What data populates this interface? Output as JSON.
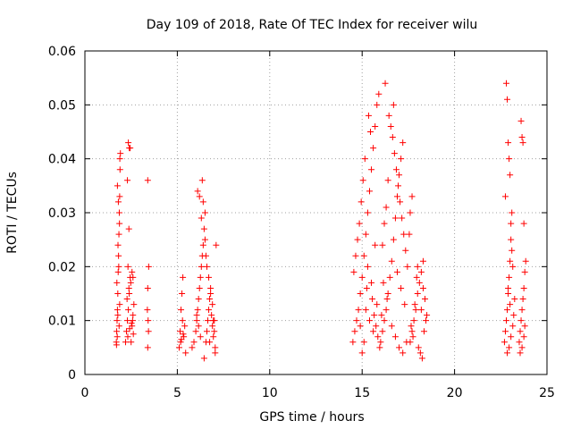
{
  "chart_data": {
    "type": "scatter",
    "title": "Day 109 of 2018, Rate Of TEC Index for receiver wilu",
    "xlabel": "GPS time / hours",
    "ylabel": "ROTI / TECUs",
    "xlim": [
      0,
      25
    ],
    "ylim": [
      0,
      0.06
    ],
    "x_ticks": [
      "0",
      "5",
      "10",
      "15",
      "20",
      "25"
    ],
    "y_ticks": [
      "0",
      "0.01",
      "0.02",
      "0.03",
      "0.04",
      "0.05",
      "0.06"
    ],
    "grid": true,
    "marker": "+",
    "colors": {
      "points": "#ff0000",
      "grid": "#a0a0a0",
      "axis": "#000000"
    },
    "series": [
      {
        "points": [
          [
            1.7,
            0.006
          ],
          [
            1.72,
            0.008
          ],
          [
            1.74,
            0.01
          ],
          [
            1.76,
            0.012
          ],
          [
            1.78,
            0.015
          ],
          [
            1.8,
            0.019
          ],
          [
            1.82,
            0.022
          ],
          [
            1.84,
            0.026
          ],
          [
            1.86,
            0.03
          ],
          [
            1.88,
            0.033
          ],
          [
            1.9,
            0.038
          ],
          [
            1.92,
            0.041
          ],
          [
            1.75,
            0.007
          ],
          [
            1.85,
            0.009
          ],
          [
            1.78,
            0.011
          ],
          [
            1.88,
            0.013
          ],
          [
            1.73,
            0.017
          ],
          [
            1.83,
            0.02
          ],
          [
            1.79,
            0.024
          ],
          [
            1.87,
            0.028
          ],
          [
            1.81,
            0.032
          ],
          [
            1.76,
            0.035
          ],
          [
            1.89,
            0.04
          ],
          [
            1.71,
            0.0055
          ],
          [
            2.2,
            0.006
          ],
          [
            2.25,
            0.008
          ],
          [
            2.3,
            0.01
          ],
          [
            2.35,
            0.012
          ],
          [
            2.4,
            0.015
          ],
          [
            2.45,
            0.018
          ],
          [
            2.5,
            0.006
          ],
          [
            2.55,
            0.009
          ],
          [
            2.6,
            0.011
          ],
          [
            2.65,
            0.013
          ],
          [
            2.28,
            0.014
          ],
          [
            2.38,
            0.016
          ],
          [
            2.48,
            0.017
          ],
          [
            2.58,
            0.01
          ],
          [
            2.32,
            0.007
          ],
          [
            2.42,
            0.0085
          ],
          [
            2.52,
            0.0095
          ],
          [
            2.62,
            0.0075
          ],
          [
            2.35,
            0.043
          ],
          [
            2.4,
            0.042
          ],
          [
            2.45,
            0.042
          ],
          [
            2.3,
            0.036
          ],
          [
            2.38,
            0.027
          ],
          [
            2.33,
            0.02
          ],
          [
            2.55,
            0.019
          ],
          [
            2.6,
            0.018
          ],
          [
            3.4,
            0.036
          ],
          [
            3.45,
            0.02
          ],
          [
            3.4,
            0.016
          ],
          [
            3.38,
            0.012
          ],
          [
            3.42,
            0.01
          ],
          [
            3.44,
            0.008
          ],
          [
            3.4,
            0.005
          ],
          [
            5.1,
            0.005
          ],
          [
            5.15,
            0.008
          ],
          [
            5.2,
            0.012
          ],
          [
            5.25,
            0.015
          ],
          [
            5.3,
            0.018
          ],
          [
            5.18,
            0.006
          ],
          [
            5.28,
            0.01
          ],
          [
            5.35,
            0.007
          ],
          [
            5.4,
            0.009
          ],
          [
            5.45,
            0.004
          ],
          [
            5.22,
            0.0065
          ],
          [
            5.32,
            0.0075
          ],
          [
            5.8,
            0.005
          ],
          [
            5.9,
            0.006
          ],
          [
            6.0,
            0.008
          ],
          [
            6.05,
            0.01
          ],
          [
            6.1,
            0.012
          ],
          [
            6.15,
            0.014
          ],
          [
            6.2,
            0.016
          ],
          [
            6.25,
            0.018
          ],
          [
            6.3,
            0.02
          ],
          [
            6.35,
            0.022
          ],
          [
            6.4,
            0.024
          ],
          [
            6.45,
            0.027
          ],
          [
            6.5,
            0.03
          ],
          [
            6.55,
            0.006
          ],
          [
            6.6,
            0.008
          ],
          [
            6.65,
            0.01
          ],
          [
            6.7,
            0.012
          ],
          [
            6.75,
            0.014
          ],
          [
            6.8,
            0.016
          ],
          [
            6.85,
            0.011
          ],
          [
            6.9,
            0.009
          ],
          [
            6.95,
            0.007
          ],
          [
            7.0,
            0.01
          ],
          [
            7.05,
            0.005
          ],
          [
            6.1,
            0.034
          ],
          [
            6.2,
            0.033
          ],
          [
            6.3,
            0.029
          ],
          [
            6.35,
            0.036
          ],
          [
            6.4,
            0.032
          ],
          [
            6.5,
            0.025
          ],
          [
            6.55,
            0.022
          ],
          [
            6.6,
            0.02
          ],
          [
            6.7,
            0.018
          ],
          [
            6.8,
            0.015
          ],
          [
            6.9,
            0.013
          ],
          [
            7.0,
            0.008
          ],
          [
            7.05,
            0.004
          ],
          [
            6.45,
            0.003
          ],
          [
            6.75,
            0.006
          ],
          [
            7.1,
            0.024
          ],
          [
            6.25,
            0.007
          ],
          [
            6.15,
            0.009
          ],
          [
            6.05,
            0.011
          ],
          [
            6.95,
            0.01
          ],
          [
            14.5,
            0.006
          ],
          [
            14.6,
            0.008
          ],
          [
            14.7,
            0.01
          ],
          [
            14.8,
            0.012
          ],
          [
            14.9,
            0.015
          ],
          [
            15.0,
            0.018
          ],
          [
            15.1,
            0.022
          ],
          [
            15.2,
            0.026
          ],
          [
            15.3,
            0.03
          ],
          [
            15.4,
            0.034
          ],
          [
            15.5,
            0.038
          ],
          [
            15.6,
            0.042
          ],
          [
            15.7,
            0.046
          ],
          [
            15.8,
            0.05
          ],
          [
            15.9,
            0.052
          ],
          [
            15.35,
            0.048
          ],
          [
            15.45,
            0.045
          ],
          [
            15.15,
            0.04
          ],
          [
            15.05,
            0.036
          ],
          [
            14.95,
            0.032
          ],
          [
            14.85,
            0.028
          ],
          [
            14.75,
            0.025
          ],
          [
            14.65,
            0.022
          ],
          [
            14.55,
            0.019
          ],
          [
            15.25,
            0.016
          ],
          [
            15.55,
            0.014
          ],
          [
            15.65,
            0.011
          ],
          [
            15.75,
            0.009
          ],
          [
            15.85,
            0.007
          ],
          [
            15.95,
            0.005
          ],
          [
            15.2,
            0.012
          ],
          [
            15.4,
            0.01
          ],
          [
            15.6,
            0.008
          ],
          [
            15.8,
            0.013
          ],
          [
            15.5,
            0.017
          ],
          [
            15.3,
            0.02
          ],
          [
            15.7,
            0.024
          ],
          [
            15.1,
            0.006
          ],
          [
            14.9,
            0.009
          ],
          [
            15.0,
            0.004
          ],
          [
            16.0,
            0.006
          ],
          [
            16.1,
            0.008
          ],
          [
            16.2,
            0.01
          ],
          [
            16.3,
            0.012
          ],
          [
            16.4,
            0.015
          ],
          [
            16.5,
            0.018
          ],
          [
            16.6,
            0.021
          ],
          [
            16.7,
            0.025
          ],
          [
            16.8,
            0.029
          ],
          [
            16.9,
            0.033
          ],
          [
            17.0,
            0.037
          ],
          [
            17.1,
            0.04
          ],
          [
            17.2,
            0.043
          ],
          [
            16.25,
            0.054
          ],
          [
            16.45,
            0.048
          ],
          [
            16.55,
            0.046
          ],
          [
            16.65,
            0.044
          ],
          [
            16.75,
            0.041
          ],
          [
            16.85,
            0.038
          ],
          [
            16.95,
            0.035
          ],
          [
            17.05,
            0.032
          ],
          [
            17.15,
            0.029
          ],
          [
            17.25,
            0.026
          ],
          [
            17.35,
            0.023
          ],
          [
            17.45,
            0.02
          ],
          [
            16.15,
            0.017
          ],
          [
            16.35,
            0.014
          ],
          [
            16.05,
            0.011
          ],
          [
            16.6,
            0.009
          ],
          [
            16.8,
            0.007
          ],
          [
            17.0,
            0.005
          ],
          [
            17.2,
            0.004
          ],
          [
            17.4,
            0.006
          ],
          [
            16.7,
            0.05
          ],
          [
            16.4,
            0.036
          ],
          [
            16.3,
            0.031
          ],
          [
            16.2,
            0.028
          ],
          [
            16.1,
            0.024
          ],
          [
            16.9,
            0.019
          ],
          [
            17.1,
            0.016
          ],
          [
            17.3,
            0.013
          ],
          [
            17.6,
            0.006
          ],
          [
            17.7,
            0.008
          ],
          [
            17.8,
            0.01
          ],
          [
            17.9,
            0.012
          ],
          [
            18.0,
            0.015
          ],
          [
            18.1,
            0.017
          ],
          [
            18.2,
            0.019
          ],
          [
            18.3,
            0.016
          ],
          [
            18.4,
            0.014
          ],
          [
            18.5,
            0.011
          ],
          [
            17.65,
            0.009
          ],
          [
            17.75,
            0.007
          ],
          [
            17.85,
            0.013
          ],
          [
            17.95,
            0.018
          ],
          [
            18.05,
            0.005
          ],
          [
            18.15,
            0.004
          ],
          [
            18.25,
            0.003
          ],
          [
            18.35,
            0.008
          ],
          [
            18.45,
            0.01
          ],
          [
            17.55,
            0.026
          ],
          [
            17.6,
            0.03
          ],
          [
            17.7,
            0.033
          ],
          [
            18.0,
            0.02
          ],
          [
            18.3,
            0.021
          ],
          [
            18.2,
            0.012
          ],
          [
            22.7,
            0.006
          ],
          [
            22.75,
            0.008
          ],
          [
            22.8,
            0.01
          ],
          [
            22.85,
            0.012
          ],
          [
            22.9,
            0.015
          ],
          [
            22.95,
            0.018
          ],
          [
            23.0,
            0.021
          ],
          [
            23.05,
            0.025
          ],
          [
            23.1,
            0.03
          ],
          [
            22.8,
            0.054
          ],
          [
            22.85,
            0.051
          ],
          [
            22.9,
            0.043
          ],
          [
            22.95,
            0.04
          ],
          [
            23.0,
            0.037
          ],
          [
            22.75,
            0.033
          ],
          [
            23.05,
            0.028
          ],
          [
            23.1,
            0.023
          ],
          [
            23.15,
            0.02
          ],
          [
            22.85,
            0.004
          ],
          [
            22.95,
            0.005
          ],
          [
            23.05,
            0.007
          ],
          [
            23.15,
            0.009
          ],
          [
            23.2,
            0.011
          ],
          [
            23.25,
            0.014
          ],
          [
            22.9,
            0.016
          ],
          [
            23.0,
            0.013
          ],
          [
            23.5,
            0.006
          ],
          [
            23.55,
            0.008
          ],
          [
            23.6,
            0.01
          ],
          [
            23.65,
            0.012
          ],
          [
            23.7,
            0.014
          ],
          [
            23.75,
            0.016
          ],
          [
            23.8,
            0.019
          ],
          [
            23.85,
            0.021
          ],
          [
            23.6,
            0.047
          ],
          [
            23.65,
            0.044
          ],
          [
            23.7,
            0.043
          ],
          [
            23.75,
            0.028
          ],
          [
            23.55,
            0.004
          ],
          [
            23.65,
            0.005
          ],
          [
            23.75,
            0.007
          ],
          [
            23.8,
            0.009
          ]
        ]
      }
    ]
  }
}
